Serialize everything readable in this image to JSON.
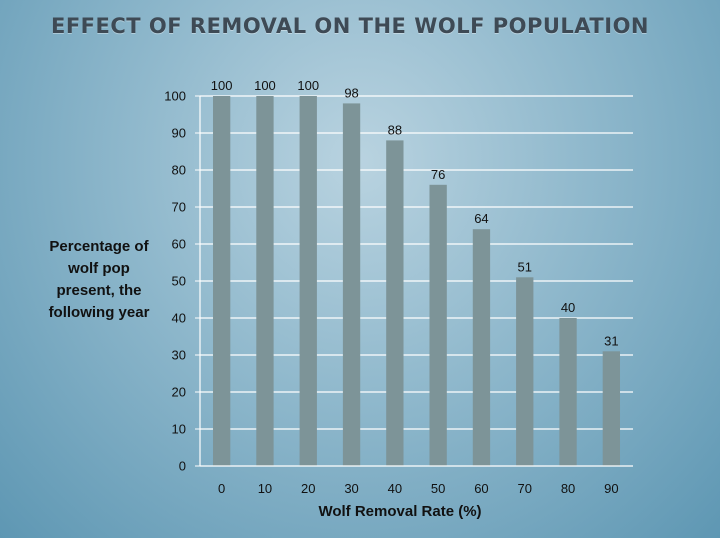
{
  "title": "EFFECT OF REMOVAL ON THE WOLF POPULATION",
  "chart_data": {
    "type": "bar",
    "title": "EFFECT OF REMOVAL ON THE WOLF POPULATION",
    "xlabel": "Wolf Removal Rate (%)",
    "ylabel": "Percentage of wolf pop present, the following year",
    "categories": [
      "0",
      "10",
      "20",
      "30",
      "40",
      "50",
      "60",
      "70",
      "80",
      "90"
    ],
    "values": [
      100,
      100,
      100,
      98,
      88,
      76,
      64,
      51,
      40,
      31
    ],
    "ylim": [
      0,
      100
    ],
    "yticks": [
      0,
      10,
      20,
      30,
      40,
      50,
      60,
      70,
      80,
      90,
      100
    ],
    "grid": true,
    "bar_color": "#7d9498",
    "grid_color": "#ffffff"
  }
}
